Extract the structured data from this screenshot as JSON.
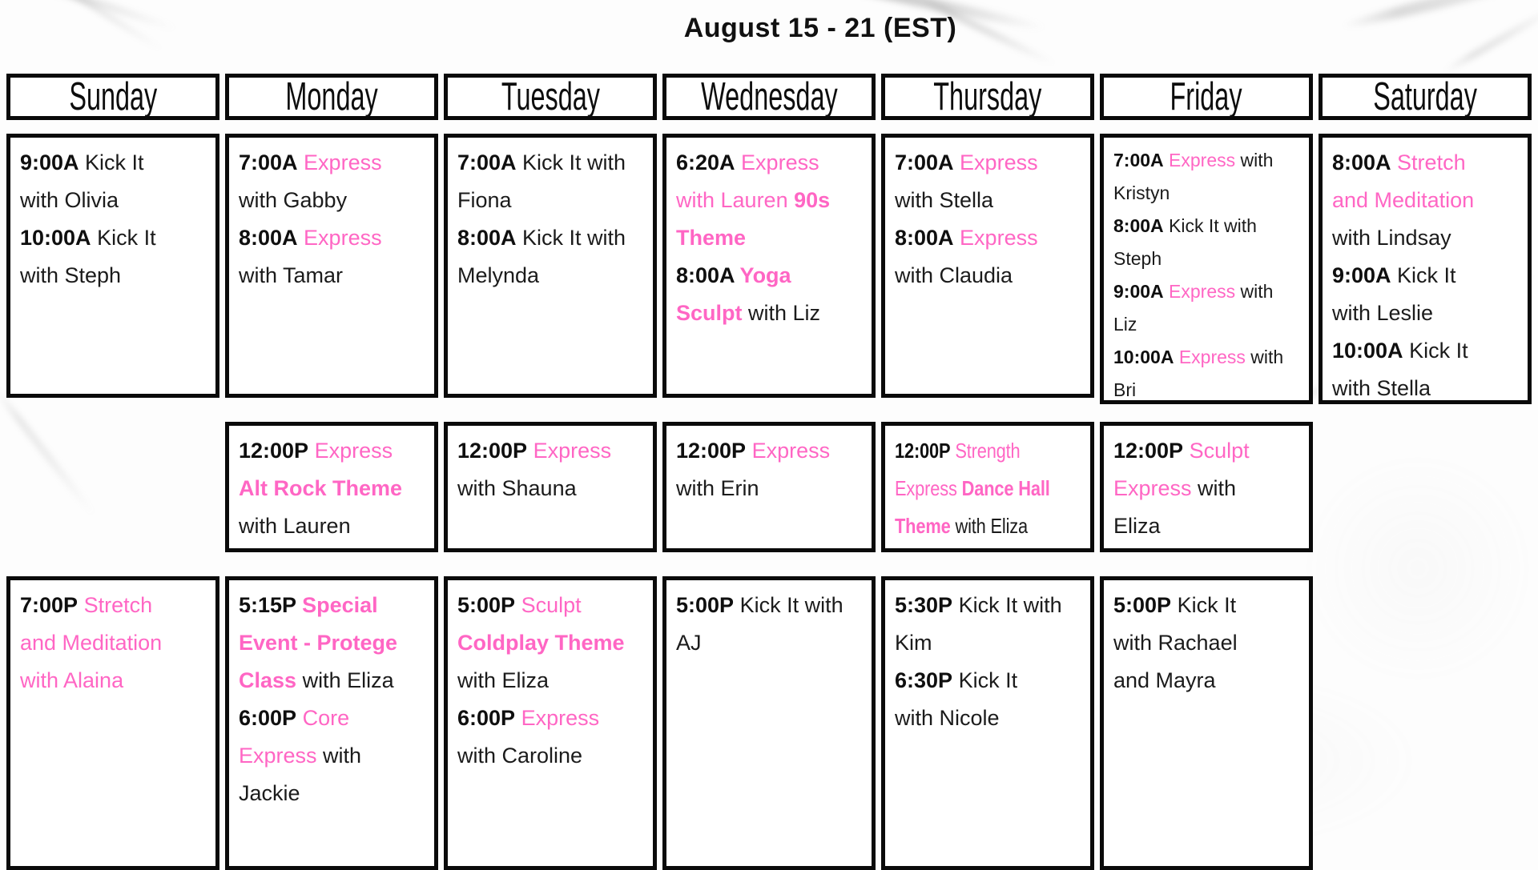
{
  "title": "August 15 - 21 (EST)",
  "colors": {
    "pink": "#ff66c4",
    "text_black": "#1b1b1b",
    "border_black": "#0a0a0a"
  },
  "legend": {
    "segment_styles": {
      "t": "bold black time",
      "k": "black text",
      "p": "pink text",
      "pb": "bold pink text"
    }
  },
  "days": [
    {
      "name": "Sunday",
      "morning": {
        "lines": [
          [
            [
              "t",
              "9:00A"
            ],
            [
              "k",
              " Kick It"
            ]
          ],
          [
            [
              "k",
              "with Olivia"
            ]
          ],
          [
            [
              "t",
              "10:00A"
            ],
            [
              "k",
              " Kick It"
            ]
          ],
          [
            [
              "k",
              "with Steph"
            ]
          ]
        ]
      },
      "midday": null,
      "evening": {
        "lines": [
          [
            [
              "t",
              "7:00P"
            ],
            [
              "p",
              " Stretch"
            ]
          ],
          [
            [
              "p",
              "and Meditation"
            ]
          ],
          [
            [
              "p",
              "with Alaina"
            ]
          ]
        ]
      }
    },
    {
      "name": "Monday",
      "morning": {
        "lines": [
          [
            [
              "t",
              "7:00A"
            ],
            [
              "p",
              " Express"
            ]
          ],
          [
            [
              "k",
              "with Gabby"
            ]
          ],
          [
            [
              "t",
              "8:00A"
            ],
            [
              "p",
              " Express"
            ]
          ],
          [
            [
              "k",
              "with Tamar"
            ]
          ]
        ]
      },
      "midday": {
        "lines": [
          [
            [
              "t",
              "12:00P"
            ],
            [
              "p",
              " Express"
            ]
          ],
          [
            [
              "pb",
              "Alt Rock Theme"
            ]
          ],
          [
            [
              "k",
              "with Lauren"
            ]
          ]
        ]
      },
      "evening": {
        "lines": [
          [
            [
              "t",
              "5:15P"
            ],
            [
              "pb",
              " Special"
            ]
          ],
          [
            [
              "pb",
              "Event - Protege"
            ]
          ],
          [
            [
              "pb",
              "Class"
            ],
            [
              "k",
              " with Eliza"
            ]
          ],
          [
            [
              "t",
              "6:00P"
            ],
            [
              "p",
              " Core"
            ]
          ],
          [
            [
              "p",
              "Express"
            ],
            [
              "k",
              " with"
            ]
          ],
          [
            [
              "k",
              "Jackie"
            ]
          ]
        ]
      }
    },
    {
      "name": "Tuesday",
      "morning": {
        "lines": [
          [
            [
              "t",
              "7:00A"
            ],
            [
              "k",
              " Kick It with"
            ]
          ],
          [
            [
              "k",
              "Fiona"
            ]
          ],
          [
            [
              "t",
              "8:00A"
            ],
            [
              "k",
              " Kick It with"
            ]
          ],
          [
            [
              "k",
              "Melynda"
            ]
          ]
        ]
      },
      "midday": {
        "lines": [
          [
            [
              "t",
              "12:00P"
            ],
            [
              "p",
              " Express"
            ]
          ],
          [
            [
              "k",
              "with Shauna"
            ]
          ]
        ]
      },
      "evening": {
        "lines": [
          [
            [
              "t",
              "5:00P"
            ],
            [
              "p",
              " Sculpt"
            ]
          ],
          [
            [
              "pb",
              "Coldplay Theme"
            ]
          ],
          [
            [
              "k",
              "with Eliza"
            ]
          ],
          [
            [
              "t",
              "6:00P"
            ],
            [
              "p",
              " Express"
            ]
          ],
          [
            [
              "k",
              "with Caroline"
            ]
          ]
        ]
      }
    },
    {
      "name": "Wednesday",
      "morning": {
        "lines": [
          [
            [
              "t",
              "6:20A"
            ],
            [
              "p",
              " Express"
            ]
          ],
          [
            [
              "p",
              "with Lauren "
            ],
            [
              "pb",
              "90s"
            ]
          ],
          [
            [
              "pb",
              "Theme"
            ]
          ],
          [
            [
              "t",
              "8:00A"
            ],
            [
              "pb",
              " Yoga"
            ]
          ],
          [
            [
              "pb",
              "Sculpt"
            ],
            [
              "k",
              " with Liz"
            ]
          ]
        ]
      },
      "midday": {
        "lines": [
          [
            [
              "t",
              "12:00P"
            ],
            [
              "p",
              " Express"
            ]
          ],
          [
            [
              "k",
              "with Erin"
            ]
          ]
        ]
      },
      "evening": {
        "lines": [
          [
            [
              "t",
              "5:00P"
            ],
            [
              "k",
              " Kick It with"
            ]
          ],
          [
            [
              "k",
              "AJ"
            ]
          ]
        ]
      }
    },
    {
      "name": "Thursday",
      "morning": {
        "lines": [
          [
            [
              "t",
              "7:00A"
            ],
            [
              "p",
              " Express"
            ]
          ],
          [
            [
              "k",
              "with Stella"
            ]
          ],
          [
            [
              "t",
              "8:00A"
            ],
            [
              "p",
              " Express"
            ]
          ],
          [
            [
              "k",
              "with Claudia"
            ]
          ]
        ]
      },
      "midday": {
        "condensed": true,
        "lines": [
          [
            [
              "t",
              "12:00P"
            ],
            [
              "p",
              " Strength"
            ]
          ],
          [
            [
              "p",
              "Express "
            ],
            [
              "pb",
              "Dance Hall"
            ]
          ],
          [
            [
              "pb",
              "Theme"
            ],
            [
              "k",
              " with Eliza"
            ]
          ]
        ]
      },
      "evening": {
        "lines": [
          [
            [
              "t",
              "5:30P"
            ],
            [
              "k",
              " Kick It with"
            ]
          ],
          [
            [
              "k",
              "Kim"
            ]
          ],
          [
            [
              "t",
              "6:30P"
            ],
            [
              "k",
              " Kick It"
            ]
          ],
          [
            [
              "k",
              "with Nicole"
            ]
          ]
        ]
      }
    },
    {
      "name": "Friday",
      "morning": {
        "tall": true,
        "size": "small",
        "lines": [
          [
            [
              "t",
              "7:00A"
            ],
            [
              "p",
              " Express"
            ],
            [
              "k",
              " with"
            ]
          ],
          [
            [
              "k",
              "Kristyn"
            ]
          ],
          [
            [
              "t",
              "8:00A"
            ],
            [
              "k",
              " Kick It with"
            ]
          ],
          [
            [
              "k",
              "Steph"
            ]
          ],
          [
            [
              "t",
              "9:00A"
            ],
            [
              "p",
              " Express"
            ],
            [
              "k",
              " with"
            ]
          ],
          [
            [
              "k",
              "Liz"
            ]
          ],
          [
            [
              "t",
              "10:00A"
            ],
            [
              "p",
              " Express"
            ],
            [
              "k",
              " with"
            ]
          ],
          [
            [
              "k",
              "Bri"
            ]
          ]
        ]
      },
      "midday": {
        "lines": [
          [
            [
              "t",
              "12:00P"
            ],
            [
              "p",
              " Sculpt"
            ]
          ],
          [
            [
              "p",
              "Express"
            ],
            [
              "k",
              " with"
            ]
          ],
          [
            [
              "k",
              "Eliza"
            ]
          ]
        ]
      },
      "evening": {
        "lines": [
          [
            [
              "t",
              "5:00P"
            ],
            [
              "k",
              " Kick It"
            ]
          ],
          [
            [
              "k",
              "with Rachael"
            ]
          ],
          [
            [
              "k",
              "and Mayra"
            ]
          ]
        ]
      }
    },
    {
      "name": "Saturday",
      "morning": {
        "tall": true,
        "lines": [
          [
            [
              "t",
              "8:00A"
            ],
            [
              "p",
              " Stretch"
            ]
          ],
          [
            [
              "p",
              "and Meditation"
            ]
          ],
          [
            [
              "k",
              "with Lindsay"
            ]
          ],
          [
            [
              "t",
              "9:00A"
            ],
            [
              "k",
              " Kick It"
            ]
          ],
          [
            [
              "k",
              "with Leslie"
            ]
          ],
          [
            [
              "t",
              "10:00A"
            ],
            [
              "k",
              " Kick It"
            ]
          ],
          [
            [
              "k",
              "with Stella"
            ]
          ]
        ]
      },
      "midday": null,
      "evening": null
    }
  ]
}
